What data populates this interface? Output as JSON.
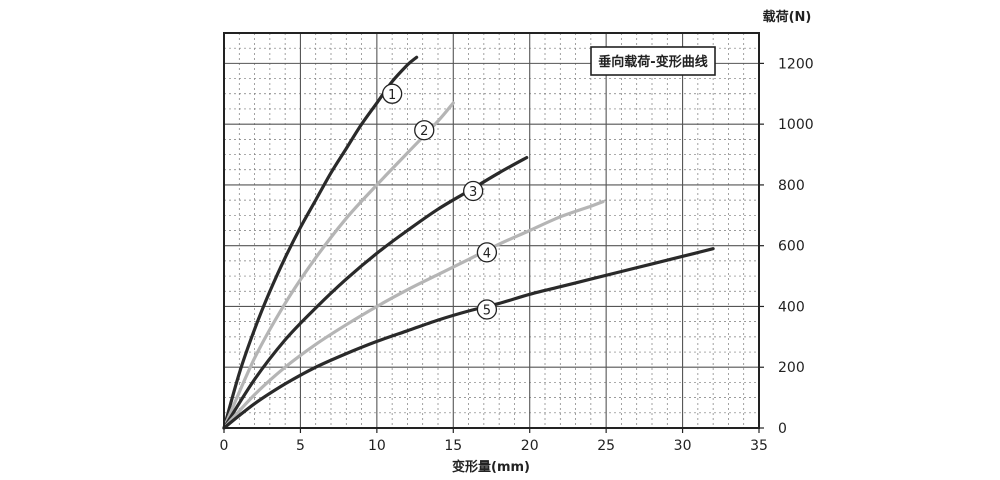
{
  "chart_data": {
    "type": "line",
    "title": "垂向载荷-变形曲线",
    "xlabel": "变形量(mm)",
    "ylabel": "载荷(N)",
    "xlim": [
      0,
      35
    ],
    "ylim": [
      0,
      1300
    ],
    "x_ticks": [
      0,
      5,
      10,
      15,
      20,
      25,
      30,
      35
    ],
    "y_ticks": [
      0,
      200,
      400,
      600,
      800,
      1000,
      1200
    ],
    "x_tick_labels": [
      "0",
      "5",
      "10",
      "15",
      "20",
      "25",
      "30",
      "35"
    ],
    "y_tick_labels": [
      "0",
      "200",
      "400",
      "600",
      "800",
      "1000",
      "1200"
    ],
    "y_axis_side": "right",
    "grid": true,
    "legend_position": "top-right",
    "series": [
      {
        "name": "1",
        "color": "#2a2a2a",
        "x": [
          0,
          1,
          2,
          3,
          4,
          5,
          6,
          7,
          8,
          9,
          10,
          11,
          12,
          12.6
        ],
        "y": [
          0,
          180,
          325,
          450,
          560,
          660,
          750,
          840,
          920,
          1000,
          1070,
          1140,
          1195,
          1220
        ],
        "marker": {
          "label": "1",
          "x": 11,
          "y": 1100
        }
      },
      {
        "name": "2",
        "color": "#b5b5b5",
        "x": [
          0,
          2,
          4,
          6,
          8,
          10,
          12,
          14,
          15
        ],
        "y": [
          0,
          230,
          410,
          560,
          690,
          800,
          905,
          1010,
          1070
        ],
        "marker": {
          "label": "2",
          "x": 13.1,
          "y": 980
        }
      },
      {
        "name": "3",
        "color": "#2a2a2a",
        "x": [
          0,
          2,
          4,
          6,
          8,
          10,
          12,
          14,
          16,
          18,
          19.8
        ],
        "y": [
          0,
          160,
          290,
          395,
          490,
          575,
          650,
          720,
          780,
          840,
          890
        ],
        "marker": {
          "label": "3",
          "x": 16.3,
          "y": 780
        }
      },
      {
        "name": "4",
        "color": "#b5b5b5",
        "x": [
          0,
          2,
          4,
          6,
          8,
          10,
          12,
          14,
          16,
          18,
          20,
          22,
          24,
          24.8
        ],
        "y": [
          0,
          110,
          200,
          275,
          340,
          400,
          455,
          505,
          555,
          605,
          650,
          695,
          730,
          745
        ],
        "marker": {
          "label": "4",
          "x": 17.2,
          "y": 578
        }
      },
      {
        "name": "5",
        "color": "#2a2a2a",
        "x": [
          0,
          2,
          4,
          6,
          8,
          10,
          12,
          14,
          16,
          18,
          20,
          22,
          24,
          26,
          28,
          30,
          32
        ],
        "y": [
          0,
          80,
          145,
          200,
          245,
          285,
          320,
          355,
          385,
          410,
          440,
          465,
          490,
          515,
          540,
          565,
          590
        ],
        "marker": {
          "label": "5",
          "x": 17.2,
          "y": 390
        }
      }
    ]
  }
}
